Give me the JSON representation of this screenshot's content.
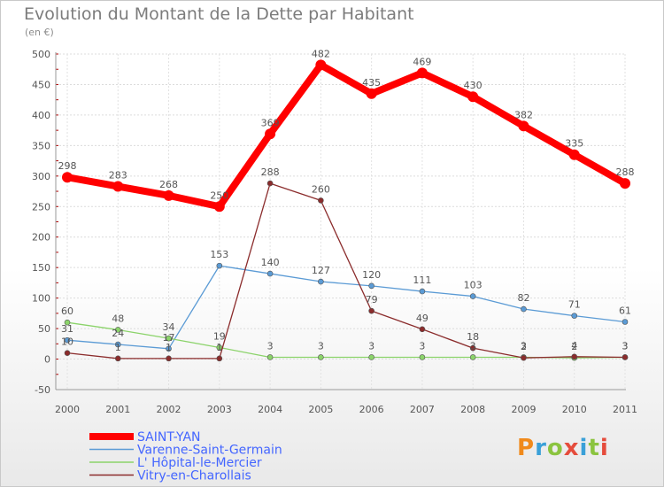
{
  "page": {
    "title": "Evolution du Montant de la Dette par Habitant",
    "subtitle": "(en €)"
  },
  "logo": {
    "text": "Proxiti",
    "colors": [
      "#f08a1c",
      "#3aa0d8",
      "#8bc43f",
      "#e54c3c",
      "#3aa0d8",
      "#8bc43f",
      "#e54c3c"
    ]
  },
  "chart_data": {
    "type": "line",
    "title": "Evolution du Montant de la Dette par Habitant",
    "subtitle": "(en €)",
    "xlabel": "",
    "ylabel": "",
    "x": [
      "2000",
      "2001",
      "2002",
      "2003",
      "2004",
      "2005",
      "2006",
      "2007",
      "2008",
      "2009",
      "2010",
      "2011"
    ],
    "ylim": [
      -50,
      500
    ],
    "yticks": [
      -50,
      0,
      50,
      100,
      150,
      200,
      250,
      300,
      350,
      400,
      450,
      500
    ],
    "grid": true,
    "legend_position": "bottom-left",
    "series": [
      {
        "name": "SAINT-YAN",
        "color": "#ff0000",
        "values": [
          298,
          283,
          268,
          250,
          369,
          482,
          435,
          469,
          430,
          382,
          335,
          288
        ]
      },
      {
        "name": "Varenne-Saint-Germain",
        "color": "#5b9bd5",
        "values": [
          31,
          24,
          17,
          153,
          140,
          127,
          120,
          111,
          103,
          82,
          71,
          61
        ]
      },
      {
        "name": "L' Hôpital-le-Mercier",
        "color": "#8bd36a",
        "values": [
          60,
          48,
          34,
          19,
          3,
          3,
          3,
          3,
          3,
          3,
          2,
          3
        ]
      },
      {
        "name": "Vitry-en-Charollais",
        "color": "#8b2c2c",
        "values": [
          10,
          1,
          1,
          1,
          288,
          260,
          79,
          49,
          18,
          2,
          4,
          3
        ]
      }
    ]
  }
}
